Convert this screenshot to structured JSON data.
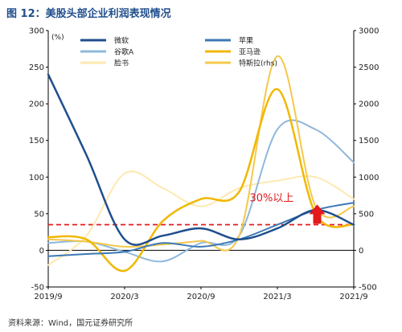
{
  "figure": {
    "title": "图 12：美股头部企业利润表现情况",
    "source": "资料来源：Wind，国元证券研究所"
  },
  "chart_data": {
    "type": "line",
    "title": "",
    "y_unit": "(%)",
    "ylabel": "",
    "y2label": "(rhs)",
    "x": [
      "2019/9",
      "2019/12",
      "2020/3",
      "2020/6",
      "2020/9",
      "2020/12",
      "2021/3",
      "2021/6",
      "2021/9"
    ],
    "x_tick_labels": [
      "2019/9",
      "2020/3",
      "2020/9",
      "2021/3",
      "2021/9"
    ],
    "ylim": [
      -50,
      300
    ],
    "yticks": [
      -50,
      0,
      50,
      100,
      150,
      200,
      250,
      300
    ],
    "y2lim": [
      -500,
      3000
    ],
    "y2ticks": [
      -500,
      0,
      500,
      1000,
      1500,
      2000,
      2500,
      3000
    ],
    "reference_line": {
      "value": 35,
      "axis": "left",
      "color": "#e41a1c",
      "style": "dashed"
    },
    "annotation": {
      "text": "30%以上",
      "color": "#e41a1c",
      "x": "2021/6",
      "y": 45,
      "arrow": "up"
    },
    "series": [
      {
        "name": "微软",
        "axis": "left",
        "color": "#1f4e8c",
        "width": 2.5,
        "values": [
          240,
          130,
          15,
          20,
          30,
          15,
          30,
          55,
          35
        ]
      },
      {
        "name": "苹果",
        "axis": "left",
        "color": "#3c78b4",
        "width": 2.0,
        "values": [
          -8,
          -5,
          -2,
          10,
          5,
          15,
          35,
          55,
          65
        ]
      },
      {
        "name": "谷歌A",
        "axis": "left",
        "color": "#8fb8dc",
        "width": 2.0,
        "values": [
          10,
          12,
          -2,
          -15,
          10,
          20,
          165,
          165,
          120
        ]
      },
      {
        "name": "亚马逊",
        "axis": "left",
        "color": "#f0b800",
        "width": 2.5,
        "values": [
          18,
          15,
          -28,
          40,
          70,
          80,
          220,
          50,
          35
        ]
      },
      {
        "name": "脸书",
        "axis": "left",
        "color": "#fde9b0",
        "width": 2.0,
        "values": [
          -20,
          20,
          105,
          85,
          60,
          85,
          95,
          100,
          70
        ]
      },
      {
        "name": "特斯拉",
        "axis": "right",
        "color": "#f5c84a",
        "width": 2.0,
        "values": [
          150,
          120,
          50,
          80,
          130,
          200,
          2650,
          600,
          600
        ]
      }
    ],
    "legend": {
      "placement": "top",
      "columns": 2
    },
    "grid": false
  }
}
